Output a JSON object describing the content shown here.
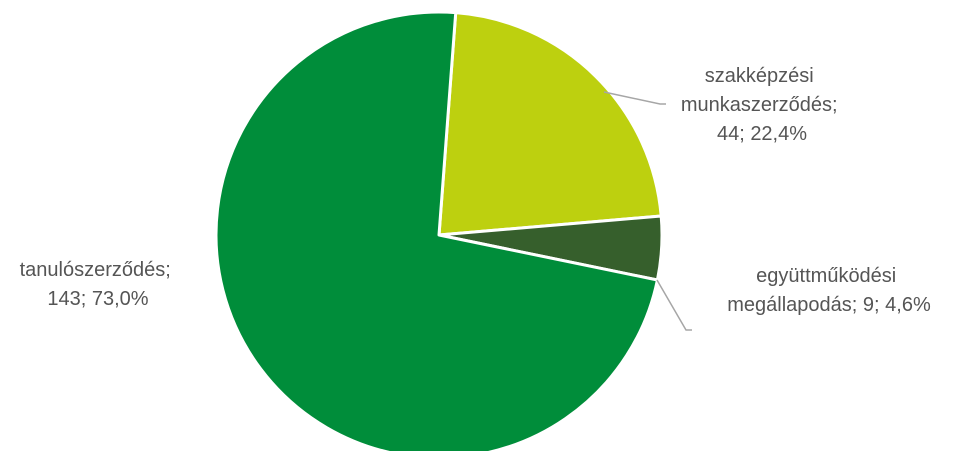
{
  "chart_data": {
    "type": "pie",
    "title": "",
    "slices": [
      {
        "name": "szakképzési munkaszerződés",
        "value": 44,
        "percent": 22.4,
        "color": "#bdd00f",
        "label_lines": [
          "szakképzési",
          "munkaszerződés;",
          "44; 22,4%"
        ]
      },
      {
        "name": "együttműködési megállapodás",
        "value": 9,
        "percent": 4.6,
        "color": "#365f2c",
        "label_lines": [
          "együttműködési",
          "megállapodás; 9; 4,6%"
        ]
      },
      {
        "name": "tanulószerződés",
        "value": 143,
        "percent": 73.0,
        "color": "#008d3a",
        "label_lines": [
          "tanulószerződés;",
          "143; 73,0%"
        ]
      }
    ],
    "legend": "none",
    "data_labels": "outside with leader lines"
  }
}
